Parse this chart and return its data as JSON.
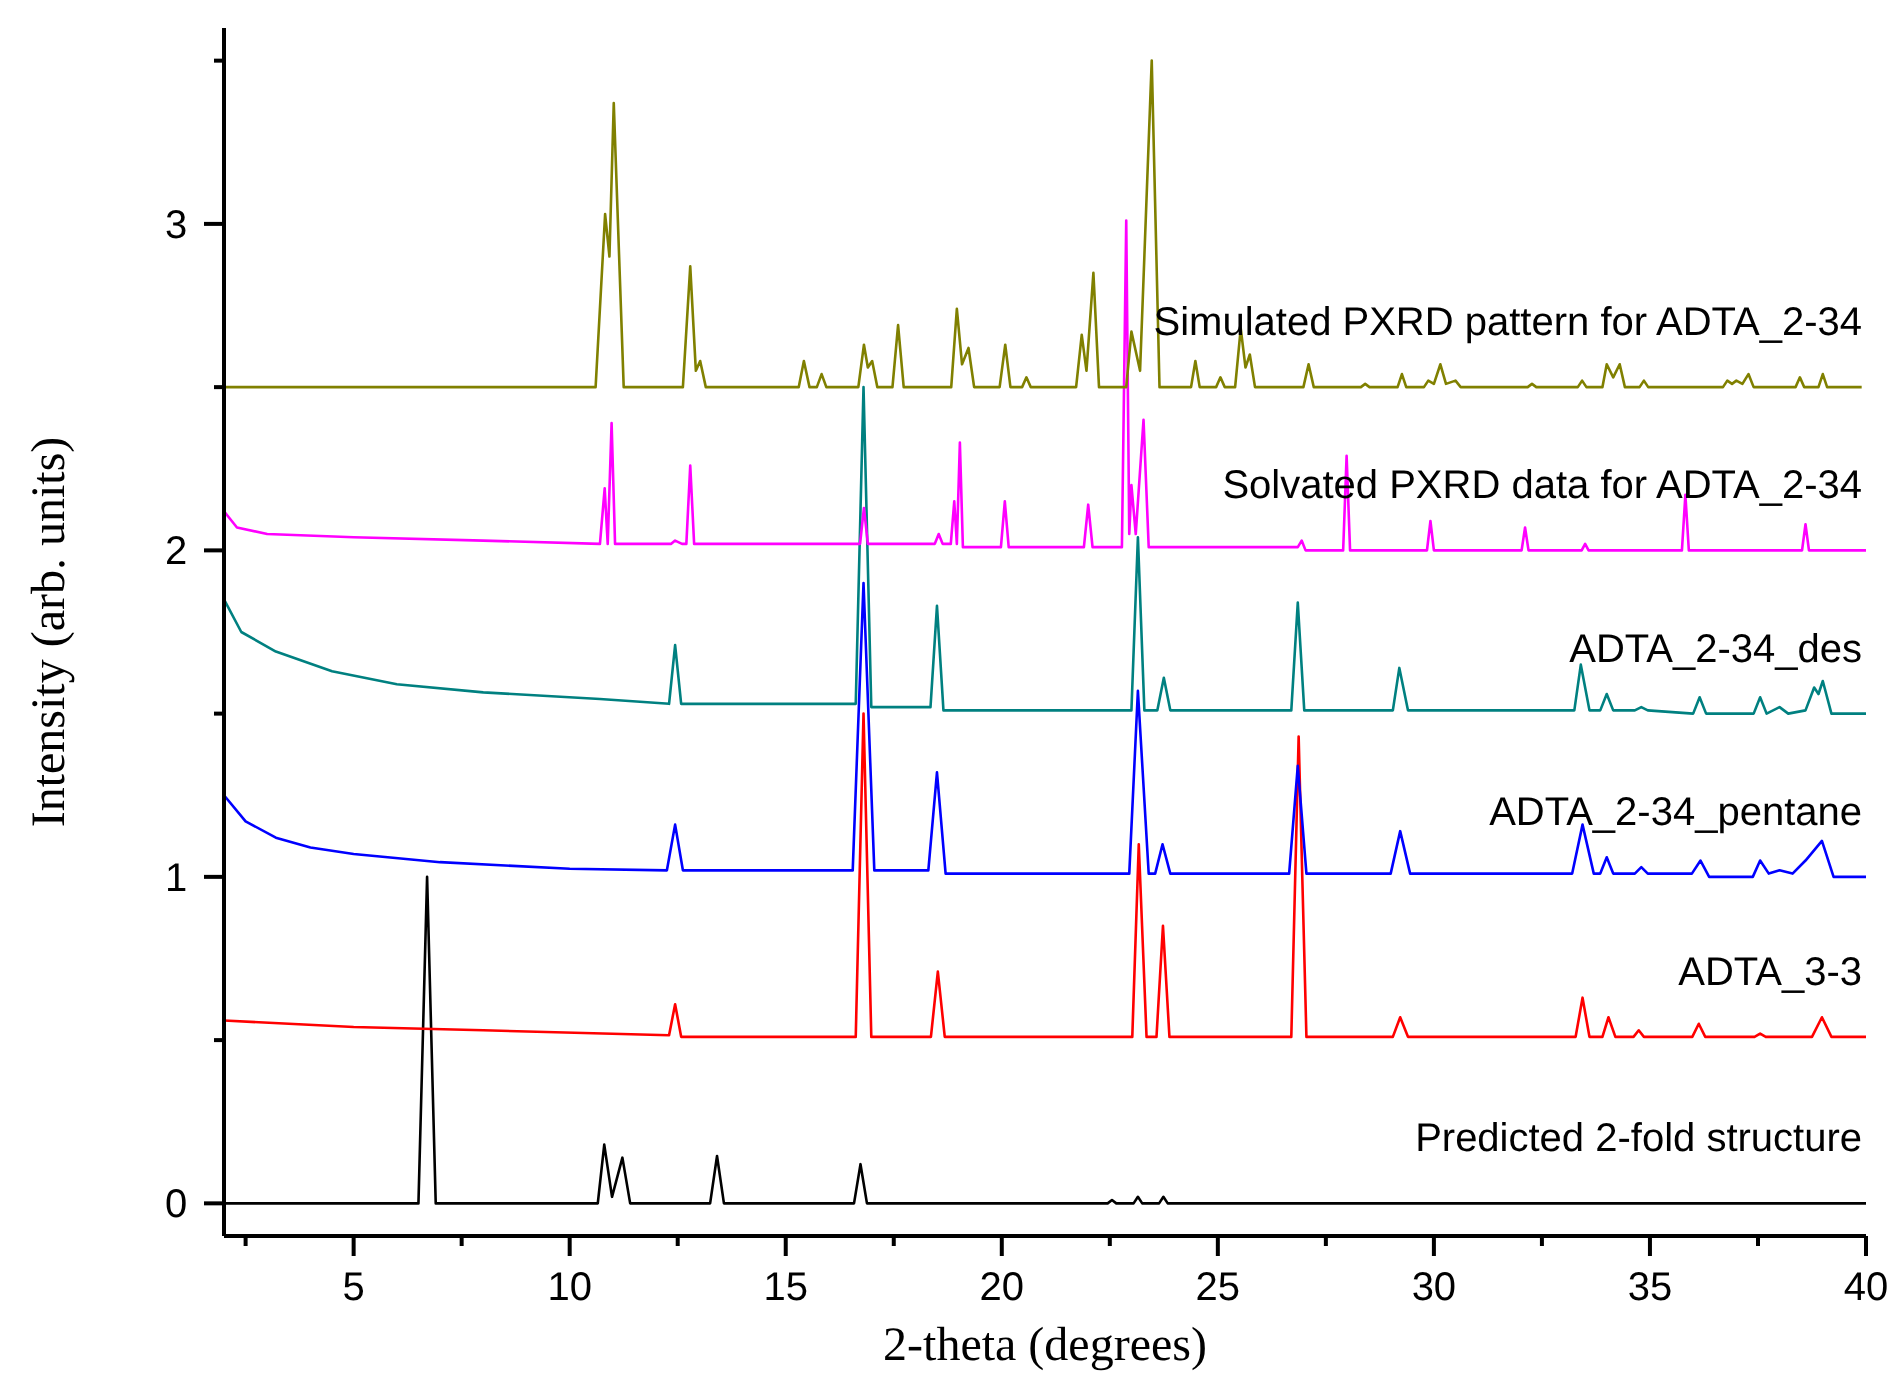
{
  "chart_data": {
    "type": "line",
    "xlabel": "2-theta (degrees)",
    "ylabel": "Intensity (arb. units)",
    "xlim": [
      2,
      40
    ],
    "ylim": [
      -0.1,
      3.6
    ],
    "xticks": [
      {
        "value": 2.5,
        "label": null
      },
      5,
      {
        "value": 7.5,
        "label": null
      },
      10,
      {
        "value": 12.5,
        "label": null
      },
      15,
      {
        "value": 17.5,
        "label": null
      },
      20,
      {
        "value": 22.5,
        "label": null
      },
      25,
      {
        "value": 27.5,
        "label": null
      },
      30,
      {
        "value": 32.5,
        "label": null
      },
      35,
      {
        "value": 37.5,
        "label": null
      },
      40
    ],
    "yticks": [
      0,
      {
        "value": 0.5,
        "label": null
      },
      1,
      {
        "value": 1.5,
        "label": null
      },
      2,
      {
        "value": 2.5,
        "label": null
      },
      3,
      {
        "value": 3.5,
        "label": null
      }
    ],
    "grid": false,
    "marker": "none",
    "line_style": "solid",
    "series": [
      {
        "name": "Predicted 2-fold structure",
        "color": "#000000",
        "x": [
          2,
          6.5,
          6.7,
          6.9,
          10.65,
          10.8,
          10.98,
          11.22,
          11.4,
          13.25,
          13.41,
          13.57,
          16.58,
          16.73,
          16.88,
          22.45,
          22.55,
          22.65,
          23.05,
          23.15,
          23.25,
          23.64,
          23.74,
          23.84,
          40
        ],
        "values": [
          0,
          0,
          1.0,
          0,
          0,
          0.18,
          0.02,
          0.14,
          0,
          0,
          0.145,
          0,
          0,
          0.12,
          0,
          0,
          0.01,
          0,
          0,
          0.02,
          0,
          0,
          0.02,
          0,
          0
        ]
      },
      {
        "name": "ADTA_3-3",
        "color": "#ff0000",
        "x": [
          2,
          5,
          8,
          12.3,
          12.44,
          12.58,
          16.62,
          16.8,
          16.98,
          18.36,
          18.52,
          18.68,
          23.02,
          23.17,
          23.35,
          23.58,
          23.73,
          23.88,
          26.7,
          26.87,
          27.05,
          29.05,
          29.22,
          29.4,
          33.28,
          33.44,
          33.6,
          33.9,
          34.04,
          34.2,
          34.62,
          34.74,
          34.86,
          35.98,
          36.13,
          36.28,
          37.42,
          37.55,
          37.68,
          38.75,
          38.98,
          39.2,
          40
        ],
        "values": [
          0.56,
          0.54,
          0.53,
          0.515,
          0.61,
          0.51,
          0.51,
          1.5,
          0.51,
          0.51,
          0.71,
          0.51,
          0.51,
          1.1,
          0.51,
          0.51,
          0.85,
          0.51,
          0.51,
          1.43,
          0.51,
          0.51,
          0.57,
          0.51,
          0.51,
          0.63,
          0.51,
          0.51,
          0.57,
          0.51,
          0.51,
          0.53,
          0.51,
          0.51,
          0.55,
          0.51,
          0.51,
          0.52,
          0.51,
          0.51,
          0.57,
          0.51,
          0.51
        ]
      },
      {
        "name": "ADTA_2-34_pentane",
        "color": "#0000ff",
        "x": [
          2,
          2.5,
          3.2,
          4,
          5,
          7,
          10,
          12.25,
          12.44,
          12.62,
          16.55,
          16.8,
          17.05,
          18.3,
          18.5,
          18.7,
          22.95,
          23.15,
          23.4,
          23.55,
          23.72,
          23.9,
          26.65,
          26.85,
          27.05,
          29.0,
          29.22,
          29.45,
          33.2,
          33.44,
          33.7,
          33.85,
          34.0,
          34.15,
          34.65,
          34.8,
          34.95,
          35.97,
          36.17,
          36.37,
          37.38,
          37.55,
          37.75,
          38.0,
          38.3,
          38.6,
          38.98,
          39.25,
          40
        ],
        "values": [
          1.25,
          1.17,
          1.12,
          1.09,
          1.07,
          1.045,
          1.025,
          1.02,
          1.16,
          1.02,
          1.02,
          1.9,
          1.02,
          1.02,
          1.32,
          1.01,
          1.01,
          1.57,
          1.01,
          1.01,
          1.1,
          1.01,
          1.01,
          1.34,
          1.01,
          1.01,
          1.14,
          1.01,
          1.01,
          1.16,
          1.01,
          1.01,
          1.06,
          1.01,
          1.01,
          1.03,
          1.01,
          1.01,
          1.05,
          1.0,
          1.0,
          1.05,
          1.01,
          1.02,
          1.01,
          1.05,
          1.11,
          1.0,
          1.0
        ]
      },
      {
        "name": "ADTA_2-34_des",
        "color": "#008080",
        "x": [
          2,
          2.4,
          3.2,
          4.5,
          6,
          8,
          10.7,
          12.3,
          12.44,
          12.58,
          16.62,
          16.8,
          16.98,
          18.35,
          18.5,
          18.65,
          23.0,
          23.15,
          23.3,
          23.6,
          23.75,
          23.9,
          26.7,
          26.85,
          27.0,
          29.05,
          29.2,
          29.4,
          33.25,
          33.4,
          33.6,
          33.85,
          34.0,
          34.15,
          34.65,
          34.8,
          34.95,
          36.0,
          36.15,
          36.3,
          37.4,
          37.55,
          37.7,
          38.0,
          38.2,
          38.6,
          38.8,
          38.9,
          39.0,
          39.2,
          40
        ],
        "values": [
          1.85,
          1.75,
          1.69,
          1.63,
          1.59,
          1.565,
          1.545,
          1.53,
          1.71,
          1.53,
          1.53,
          2.5,
          1.52,
          1.52,
          1.83,
          1.51,
          1.51,
          2.04,
          1.51,
          1.51,
          1.61,
          1.51,
          1.51,
          1.84,
          1.51,
          1.51,
          1.64,
          1.51,
          1.51,
          1.65,
          1.51,
          1.51,
          1.56,
          1.51,
          1.51,
          1.52,
          1.51,
          1.5,
          1.55,
          1.5,
          1.5,
          1.55,
          1.5,
          1.52,
          1.5,
          1.51,
          1.58,
          1.56,
          1.6,
          1.5,
          1.5
        ]
      },
      {
        "name": "Solvated PXRD data for ADTA_2-34",
        "color": "#ff00ff",
        "x": [
          2,
          2.3,
          3,
          5,
          8,
          10.7,
          10.81,
          10.88,
          10.97,
          11.05,
          12.35,
          12.44,
          12.6,
          12.7,
          12.79,
          12.88,
          16.72,
          16.81,
          16.9,
          18.45,
          18.54,
          18.63,
          18.82,
          18.9,
          18.96,
          19.03,
          19.1,
          19.98,
          20.07,
          20.16,
          21.9,
          22.0,
          22.1,
          22.78,
          22.88,
          22.95,
          23.0,
          23.1,
          23.28,
          23.4,
          26.85,
          26.94,
          27.03,
          27.9,
          27.98,
          28.06,
          29.84,
          29.92,
          30.0,
          32.03,
          32.11,
          32.19,
          33.42,
          33.5,
          33.58,
          35.74,
          35.82,
          35.9,
          38.52,
          38.6,
          38.68,
          40
        ],
        "values": [
          2.12,
          2.07,
          2.05,
          2.04,
          2.03,
          2.02,
          2.19,
          2.02,
          2.39,
          2.02,
          2.02,
          2.03,
          2.02,
          2.02,
          2.26,
          2.02,
          2.02,
          2.13,
          2.02,
          2.02,
          2.05,
          2.02,
          2.02,
          2.15,
          2.02,
          2.33,
          2.01,
          2.01,
          2.15,
          2.01,
          2.01,
          2.14,
          2.01,
          2.01,
          3.01,
          2.05,
          2.2,
          2.05,
          2.4,
          2.01,
          2.01,
          2.03,
          2.0,
          2.0,
          2.29,
          2.0,
          2.0,
          2.09,
          2.0,
          2.0,
          2.07,
          2.0,
          2.0,
          2.02,
          2.0,
          2.0,
          2.17,
          2.0,
          2.0,
          2.08,
          2.0,
          2.0
        ]
      },
      {
        "name": "Simulated PXRD pattern for ADTA_2-34",
        "color": "#808000",
        "x": [
          2,
          10.6,
          10.82,
          10.92,
          11.02,
          11.25,
          12.62,
          12.79,
          12.92,
          13.02,
          13.15,
          15.3,
          15.42,
          15.55,
          15.72,
          15.83,
          15.94,
          16.68,
          16.81,
          16.9,
          17.0,
          17.12,
          17.47,
          17.6,
          17.73,
          18.83,
          18.96,
          19.08,
          19.23,
          19.36,
          19.95,
          20.08,
          20.2,
          20.47,
          20.57,
          20.67,
          21.72,
          21.85,
          21.96,
          22.12,
          22.25,
          22.88,
          23.0,
          23.2,
          23.47,
          23.65,
          24.38,
          24.48,
          24.58,
          24.96,
          25.06,
          25.16,
          25.4,
          25.53,
          25.64,
          25.74,
          25.86,
          26.98,
          27.1,
          27.22,
          28.31,
          28.41,
          28.51,
          29.16,
          29.26,
          29.36,
          29.77,
          29.87,
          30.0,
          30.15,
          30.28,
          30.5,
          30.62,
          32.17,
          32.27,
          32.37,
          33.33,
          33.43,
          33.53,
          33.9,
          34.0,
          34.15,
          34.3,
          34.42,
          34.76,
          34.86,
          34.96,
          36.69,
          36.79,
          36.9,
          37.0,
          37.14,
          37.28,
          37.4,
          38.37,
          38.47,
          38.57,
          38.9,
          39.0,
          39.1,
          39.9
        ],
        "values": [
          2.5,
          2.5,
          3.03,
          2.9,
          3.37,
          2.5,
          2.5,
          2.87,
          2.55,
          2.58,
          2.5,
          2.5,
          2.58,
          2.5,
          2.5,
          2.54,
          2.5,
          2.5,
          2.63,
          2.56,
          2.58,
          2.5,
          2.5,
          2.69,
          2.5,
          2.5,
          2.74,
          2.57,
          2.62,
          2.5,
          2.5,
          2.63,
          2.5,
          2.5,
          2.53,
          2.5,
          2.5,
          2.66,
          2.55,
          2.85,
          2.5,
          2.5,
          2.67,
          2.55,
          3.5,
          2.5,
          2.5,
          2.58,
          2.5,
          2.5,
          2.53,
          2.5,
          2.5,
          2.68,
          2.56,
          2.6,
          2.5,
          2.5,
          2.57,
          2.5,
          2.5,
          2.51,
          2.5,
          2.5,
          2.54,
          2.5,
          2.5,
          2.52,
          2.51,
          2.57,
          2.51,
          2.52,
          2.5,
          2.5,
          2.51,
          2.5,
          2.5,
          2.52,
          2.5,
          2.5,
          2.57,
          2.53,
          2.57,
          2.5,
          2.5,
          2.52,
          2.5,
          2.5,
          2.52,
          2.51,
          2.52,
          2.51,
          2.54,
          2.5,
          2.5,
          2.53,
          2.5,
          2.5,
          2.54,
          2.5,
          2.5
        ]
      }
    ]
  }
}
